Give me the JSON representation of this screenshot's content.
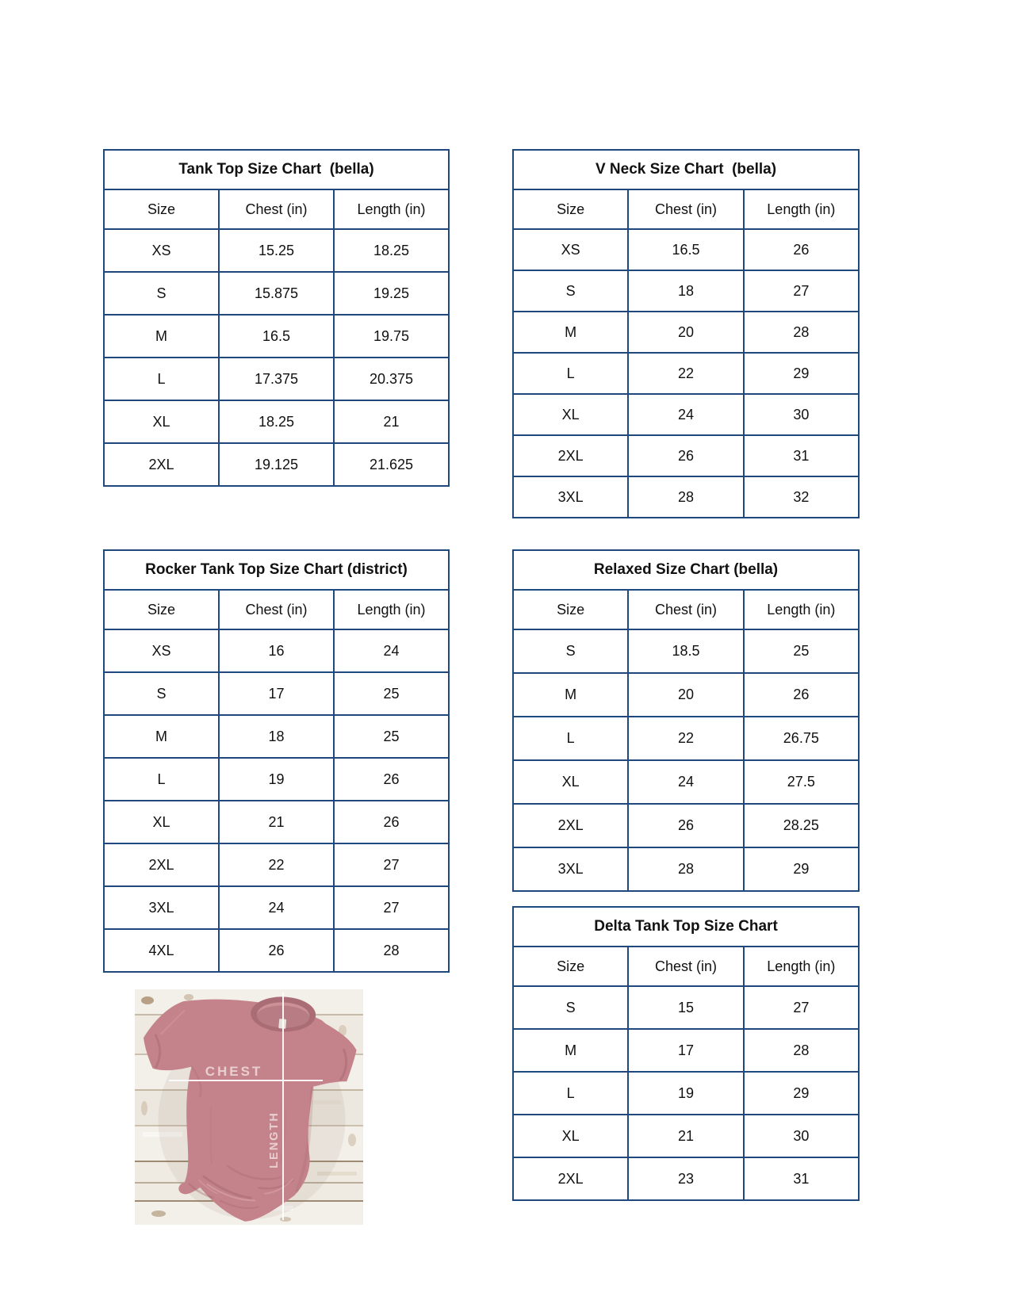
{
  "document": {
    "kind": "size-chart-sheet",
    "table_border_color": "#1f497d",
    "text_color": "#111111",
    "background_color": "#ffffff"
  },
  "tables": [
    {
      "id": "tank-top",
      "title": "Tank Top Size Chart  (bella)",
      "headers": [
        "Size",
        "Chest (in)",
        "Length (in)"
      ],
      "rows": [
        [
          "XS",
          "15.25",
          "18.25"
        ],
        [
          "S",
          "15.875",
          "19.25"
        ],
        [
          "M",
          "16.5",
          "19.75"
        ],
        [
          "L",
          "17.375",
          "20.375"
        ],
        [
          "XL",
          "18.25",
          "21"
        ],
        [
          "2XL",
          "19.125",
          "21.625"
        ]
      ]
    },
    {
      "id": "v-neck",
      "title": "V Neck Size Chart  (bella)",
      "headers": [
        "Size",
        "Chest (in)",
        "Length (in)"
      ],
      "rows": [
        [
          "XS",
          "16.5",
          "26"
        ],
        [
          "S",
          "18",
          "27"
        ],
        [
          "M",
          "20",
          "28"
        ],
        [
          "L",
          "22",
          "29"
        ],
        [
          "XL",
          "24",
          "30"
        ],
        [
          "2XL",
          "26",
          "31"
        ],
        [
          "3XL",
          "28",
          "32"
        ]
      ]
    },
    {
      "id": "rocker",
      "title": "Rocker Tank Top Size Chart (district)",
      "headers": [
        "Size",
        "Chest (in)",
        "Length (in)"
      ],
      "rows": [
        [
          "XS",
          "16",
          "24"
        ],
        [
          "S",
          "17",
          "25"
        ],
        [
          "M",
          "18",
          "25"
        ],
        [
          "L",
          "19",
          "26"
        ],
        [
          "XL",
          "21",
          "26"
        ],
        [
          "2XL",
          "22",
          "27"
        ],
        [
          "3XL",
          "24",
          "27"
        ],
        [
          "4XL",
          "26",
          "28"
        ]
      ]
    },
    {
      "id": "relaxed",
      "title": "Relaxed Size Chart (bella)",
      "headers": [
        "Size",
        "Chest (in)",
        "Length (in)"
      ],
      "rows": [
        [
          "S",
          "18.5",
          "25"
        ],
        [
          "M",
          "20",
          "26"
        ],
        [
          "L",
          "22",
          "26.75"
        ],
        [
          "XL",
          "24",
          "27.5"
        ],
        [
          "2XL",
          "26",
          "28.25"
        ],
        [
          "3XL",
          "28",
          "29"
        ]
      ]
    },
    {
      "id": "delta",
      "title": "Delta Tank Top Size Chart",
      "headers": [
        "Size",
        "Chest (in)",
        "Length (in)"
      ],
      "rows": [
        [
          "S",
          "15",
          "27"
        ],
        [
          "M",
          "17",
          "28"
        ],
        [
          "L",
          "19",
          "29"
        ],
        [
          "XL",
          "21",
          "30"
        ],
        [
          "2XL",
          "23",
          "31"
        ]
      ]
    }
  ],
  "figure": {
    "chest_label": "CHEST",
    "length_label": "LENGTH",
    "shirt_color": "#c4838a",
    "wood_color": "#f3efe9",
    "line_color": "#ffffff"
  }
}
